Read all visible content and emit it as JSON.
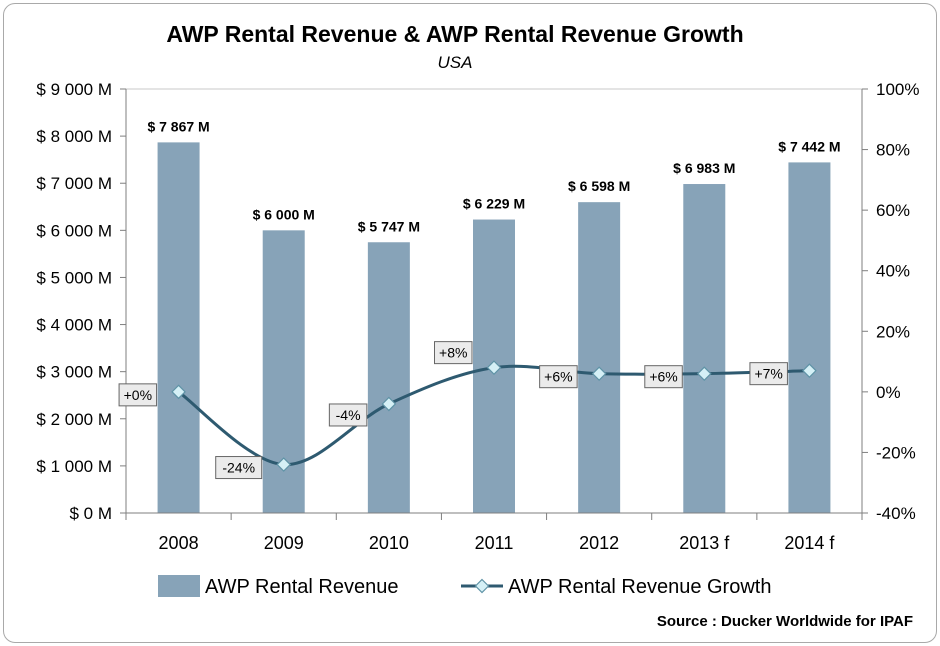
{
  "chart_data": {
    "type": "bar",
    "title": "AWP Rental Revenue & AWP Rental Revenue Growth",
    "subtitle": "USA",
    "categories": [
      "2008",
      "2009",
      "2010",
      "2011",
      "2012",
      "2013 f",
      "2014 f"
    ],
    "series": [
      {
        "name": "AWP Rental Revenue",
        "type": "bar",
        "axis": "left",
        "color": "#87a3b8",
        "values": [
          7867,
          6000,
          5747,
          6229,
          6598,
          6983,
          7442
        ],
        "labels": [
          "$ 7 867 M",
          "$ 6 000 M",
          "$ 5 747 M",
          "$ 6 229 M",
          "$ 6 598 M",
          "$ 6 983 M",
          "$ 7 442 M"
        ]
      },
      {
        "name": "AWP Rental Revenue Growth",
        "type": "line",
        "axis": "right",
        "color": "#2e5a70",
        "marker_color": "#d5f0f6",
        "values": [
          0,
          -24,
          -4,
          8,
          6,
          6,
          7
        ],
        "labels": [
          "+0%",
          "-24%",
          "-4%",
          "+8%",
          "+6%",
          "+6%",
          "+7%"
        ]
      }
    ],
    "ylim_left": [
      0,
      9000
    ],
    "ylim_right": [
      -40,
      100
    ],
    "yticks_left": [
      "$ 0 M",
      "$ 1 000 M",
      "$ 2 000 M",
      "$ 3 000 M",
      "$ 4 000 M",
      "$ 5 000 M",
      "$ 6 000 M",
      "$ 7 000 M",
      "$ 8 000 M",
      "$ 9 000 M"
    ],
    "yticks_right": [
      "-40%",
      "-20%",
      "0%",
      "20%",
      "40%",
      "60%",
      "80%",
      "100%"
    ],
    "grid": false,
    "legend_position": "bottom",
    "source": "Source : Ducker Worldwide for IPAF"
  }
}
